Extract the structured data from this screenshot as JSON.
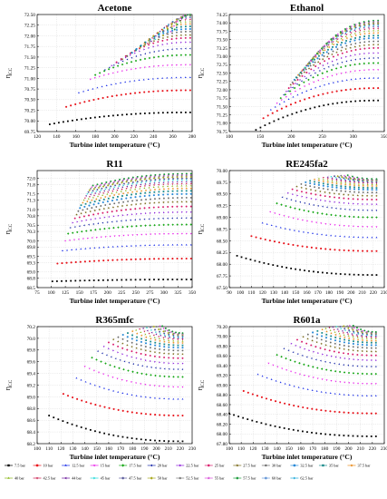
{
  "chart_data": [
    {
      "type": "scatter",
      "title": "Acetone",
      "xlabel": "Turbine inlet temperature (°C)",
      "ylabel_main": "η",
      "ylabel_sub": "CC",
      "xlim": [
        120,
        280
      ],
      "ylim": [
        69.75,
        72.5
      ],
      "xticks": [
        "120",
        "140",
        "160",
        "180",
        "200",
        "220",
        "240",
        "260",
        "280"
      ],
      "yticks": [
        "69.75",
        "70.00",
        "70.25",
        "70.50",
        "70.75",
        "71.00",
        "71.25",
        "71.50",
        "71.75",
        "72.00",
        "72.25",
        "72.50"
      ],
      "curves": {
        "tmax": 278,
        "rows": [
          [
            133,
            69.92,
            70.2
          ],
          [
            150,
            70.33,
            70.72
          ],
          [
            163,
            70.66,
            71.02
          ],
          [
            175,
            70.98,
            71.32
          ],
          [
            180,
            71.08,
            71.55
          ],
          [
            190,
            71.2,
            71.7
          ],
          [
            197,
            71.3,
            71.85
          ],
          [
            202,
            71.38,
            71.95
          ],
          [
            208,
            71.45,
            72.02
          ],
          [
            213,
            71.52,
            72.1
          ],
          [
            218,
            71.6,
            72.16
          ],
          [
            222,
            71.66,
            72.22
          ],
          [
            226,
            71.72,
            72.28
          ],
          [
            230,
            71.77,
            72.33
          ],
          [
            234,
            71.82,
            72.38
          ],
          [
            238,
            71.87,
            72.42
          ],
          [
            242,
            71.92,
            72.45
          ],
          [
            246,
            71.97,
            72.47
          ],
          [
            250,
            72.01,
            72.48
          ],
          [
            254,
            72.05,
            72.49
          ],
          [
            258,
            72.1,
            72.5
          ],
          [
            262,
            72.15,
            72.5
          ]
        ]
      }
    },
    {
      "type": "scatter",
      "title": "Ethanol",
      "xlabel": "Turbine inlet temperature (°C)",
      "ylabel_main": "η",
      "ylabel_sub": "CC",
      "xlim": [
        100,
        350
      ],
      "ylim": [
        70.75,
        74.25
      ],
      "xticks": [
        "100",
        "150",
        "200",
        "250",
        "300",
        "350"
      ],
      "yticks": [
        "70.75",
        "71.00",
        "71.25",
        "71.50",
        "71.75",
        "72.00",
        "72.25",
        "72.50",
        "72.75",
        "73.00",
        "73.25",
        "73.50",
        "73.75",
        "74.00",
        "74.25"
      ],
      "curves": {
        "tmax": 340,
        "rows": [
          [
            143,
            70.8,
            71.68
          ],
          [
            155,
            71.15,
            72.05
          ],
          [
            167,
            71.4,
            72.35
          ],
          [
            177,
            71.6,
            72.6
          ],
          [
            183,
            71.75,
            72.8
          ],
          [
            188,
            71.85,
            72.95
          ],
          [
            192,
            71.95,
            73.1
          ],
          [
            196,
            72.05,
            73.25
          ],
          [
            199,
            72.15,
            73.35
          ],
          [
            202,
            72.22,
            73.45
          ],
          [
            205,
            72.3,
            73.55
          ],
          [
            208,
            72.37,
            73.62
          ],
          [
            211,
            72.44,
            73.7
          ],
          [
            214,
            72.5,
            73.77
          ],
          [
            217,
            72.56,
            73.83
          ],
          [
            220,
            72.62,
            73.88
          ],
          [
            222,
            72.67,
            73.92
          ],
          [
            225,
            72.72,
            73.96
          ],
          [
            227,
            72.77,
            73.99
          ],
          [
            229,
            72.82,
            74.02
          ],
          [
            232,
            72.86,
            74.05
          ],
          [
            234,
            72.9,
            74.07
          ]
        ]
      }
    },
    {
      "type": "scatter",
      "title": "R11",
      "xlabel": "Turbine inlet temperature (°C)",
      "ylabel_main": "η",
      "ylabel_sub": "CC",
      "xlim": [
        75,
        350
      ],
      "ylim": [
        68.5,
        72.25
      ],
      "xticks": [
        "75",
        "100",
        "125",
        "150",
        "175",
        "200",
        "225",
        "250",
        "275",
        "300",
        "325",
        "350"
      ],
      "yticks": [
        "68.5",
        "68.8",
        "69.0",
        "69.3",
        "69.5",
        "69.8",
        "70.0",
        "70.3",
        "70.5",
        "70.8",
        "71.0",
        "71.3",
        "71.5",
        "71.8",
        "72.0"
      ],
      "curves": {
        "tmax": 348,
        "rows": [
          [
            102,
            68.7,
            68.76
          ],
          [
            111,
            69.27,
            69.43
          ],
          [
            120,
            69.68,
            69.87
          ],
          [
            125,
            70.0,
            70.23
          ],
          [
            130,
            70.23,
            70.52
          ],
          [
            134,
            70.42,
            70.73
          ],
          [
            138,
            70.58,
            70.92
          ],
          [
            142,
            70.72,
            71.1
          ],
          [
            145,
            70.84,
            71.25
          ],
          [
            148,
            70.95,
            71.38
          ],
          [
            151,
            71.05,
            71.5
          ],
          [
            153,
            71.14,
            71.6
          ],
          [
            156,
            71.22,
            71.68
          ],
          [
            158,
            71.3,
            71.76
          ],
          [
            160,
            71.37,
            71.83
          ],
          [
            162,
            71.44,
            71.89
          ],
          [
            164,
            71.5,
            71.95
          ],
          [
            166,
            71.56,
            72.0
          ],
          [
            168,
            71.62,
            72.05
          ],
          [
            170,
            71.67,
            72.09
          ],
          [
            172,
            71.72,
            72.12
          ],
          [
            174,
            71.77,
            72.15
          ]
        ]
      }
    },
    {
      "type": "scatter",
      "title": "RE245fa2",
      "xlabel": "Turbine inlet temperature (°C)",
      "ylabel_main": "η",
      "ylabel_sub": "CC",
      "xlim": [
        90,
        230
      ],
      "ylim": [
        67.5,
        70.0
      ],
      "xticks": [
        "90",
        "100",
        "110",
        "120",
        "130",
        "140",
        "150",
        "160",
        "170",
        "180",
        "190",
        "200",
        "210",
        "220",
        "230"
      ],
      "yticks": [
        "67.50",
        "67.75",
        "68.00",
        "68.25",
        "68.50",
        "68.75",
        "69.00",
        "69.25",
        "69.50",
        "69.75",
        "70.00"
      ],
      "curves": {
        "tmax": 223,
        "rows": [
          [
            97,
            68.18,
            67.77
          ],
          [
            110,
            68.6,
            68.28
          ],
          [
            120,
            68.88,
            68.57
          ],
          [
            127,
            69.12,
            68.8
          ],
          [
            133,
            69.3,
            69.0
          ],
          [
            138,
            69.43,
            69.15
          ],
          [
            143,
            69.52,
            69.28
          ],
          [
            147,
            69.6,
            69.38
          ],
          [
            151,
            69.66,
            69.46
          ],
          [
            155,
            69.71,
            69.53
          ],
          [
            159,
            69.75,
            69.59
          ],
          [
            163,
            69.78,
            69.63
          ],
          [
            167,
            69.81,
            69.67
          ],
          [
            171,
            69.83,
            69.7
          ],
          [
            175,
            69.85,
            69.73
          ],
          [
            179,
            69.86,
            69.75
          ],
          [
            182,
            69.87,
            69.77
          ],
          [
            185,
            69.88,
            69.78
          ],
          [
            188,
            69.88,
            69.79
          ],
          [
            191,
            69.89,
            69.8
          ],
          [
            194,
            69.89,
            69.81
          ],
          [
            197,
            69.9,
            69.82
          ]
        ]
      }
    },
    {
      "type": "scatter",
      "title": "R365mfc",
      "xlabel": "Turbine inlet temperature (°C)",
      "ylabel_main": "η",
      "ylabel_sub": "CC",
      "xlim": [
        100,
        230
      ],
      "ylim": [
        68.2,
        70.2
      ],
      "xticks": [
        "100",
        "110",
        "120",
        "130",
        "140",
        "150",
        "160",
        "170",
        "180",
        "190",
        "200",
        "210",
        "220",
        "230"
      ],
      "yticks": [
        "68.2",
        "68.4",
        "68.6",
        "68.8",
        "69.0",
        "69.2",
        "69.4",
        "69.6",
        "69.8",
        "70.0",
        "70.2"
      ],
      "curves": {
        "tmax": 222,
        "rows": [
          [
            110,
            68.68,
            68.24
          ],
          [
            122,
            69.05,
            68.68
          ],
          [
            133,
            69.32,
            68.96
          ],
          [
            140,
            69.52,
            69.17
          ],
          [
            146,
            69.67,
            69.34
          ],
          [
            151,
            69.78,
            69.47
          ],
          [
            156,
            69.86,
            69.57
          ],
          [
            160,
            69.93,
            69.66
          ],
          [
            164,
            69.98,
            69.73
          ],
          [
            168,
            70.02,
            69.79
          ],
          [
            172,
            70.06,
            69.84
          ],
          [
            176,
            70.09,
            69.88
          ],
          [
            180,
            70.12,
            69.92
          ],
          [
            183,
            70.14,
            69.95
          ],
          [
            186,
            70.16,
            69.98
          ],
          [
            189,
            70.17,
            70.0
          ],
          [
            192,
            70.18,
            70.02
          ],
          [
            195,
            70.19,
            70.04
          ],
          [
            198,
            70.2,
            70.06
          ],
          [
            200,
            70.2,
            70.07
          ],
          [
            203,
            70.21,
            70.08
          ],
          [
            205,
            70.21,
            70.09
          ]
        ]
      }
    },
    {
      "type": "scatter",
      "title": "R601a",
      "xlabel": "Turbine inlet temperature (°C)",
      "ylabel_main": "η",
      "ylabel_sub": "CC",
      "xlim": [
        100,
        230
      ],
      "ylim": [
        67.8,
        70.2
      ],
      "xticks": [
        "100",
        "110",
        "120",
        "130",
        "140",
        "150",
        "160",
        "170",
        "180",
        "190",
        "200",
        "210",
        "220",
        "230"
      ],
      "yticks": [
        "67.80",
        "68.00",
        "68.20",
        "68.40",
        "68.60",
        "68.80",
        "69.00",
        "69.20",
        "69.40",
        "69.60",
        "69.80",
        "70.00",
        "70.20"
      ],
      "curves": {
        "tmax": 223,
        "rows": [
          [
            100,
            68.42,
            67.95
          ],
          [
            112,
            68.88,
            68.42
          ],
          [
            124,
            69.22,
            68.78
          ],
          [
            133,
            69.45,
            69.03
          ],
          [
            140,
            69.62,
            69.23
          ],
          [
            146,
            69.75,
            69.38
          ],
          [
            152,
            69.85,
            69.51
          ],
          [
            157,
            69.93,
            69.61
          ],
          [
            162,
            69.99,
            69.69
          ],
          [
            166,
            70.04,
            69.76
          ],
          [
            170,
            70.08,
            69.82
          ],
          [
            174,
            70.11,
            69.87
          ],
          [
            178,
            70.14,
            69.91
          ],
          [
            181,
            70.16,
            69.95
          ],
          [
            184,
            70.18,
            69.98
          ],
          [
            187,
            70.19,
            70.0
          ],
          [
            190,
            70.2,
            70.02
          ],
          [
            193,
            70.2,
            70.04
          ],
          [
            196,
            70.21,
            70.06
          ],
          [
            199,
            70.21,
            70.07
          ],
          [
            201,
            70.22,
            70.08
          ],
          [
            204,
            70.22,
            70.09
          ]
        ]
      }
    }
  ],
  "legend": [
    {
      "label": "7.5 bar",
      "color": "#000000",
      "marker": "square"
    },
    {
      "label": "10 bar",
      "color": "#e8121a",
      "marker": "circle"
    },
    {
      "label": "12.5 bar",
      "color": "#1a2ee8",
      "marker": "triangle"
    },
    {
      "label": "15 bar",
      "color": "#e81ae8",
      "marker": "triangle-down"
    },
    {
      "label": "17.5 bar",
      "color": "#14a614",
      "marker": "diamond"
    },
    {
      "label": "20 bar",
      "color": "#1a2aa8",
      "marker": "triangle-left"
    },
    {
      "label": "22.5 bar",
      "color": "#8a1ad8",
      "marker": "triangle-right"
    },
    {
      "label": "25 bar",
      "color": "#d81a6a",
      "marker": "hexagon"
    },
    {
      "label": "27.5 bar",
      "color": "#7a6a1a",
      "marker": "star"
    },
    {
      "label": "30 bar",
      "color": "#6a6a6a",
      "marker": "pentagon"
    },
    {
      "label": "32.5 bar",
      "color": "#2a8ad8",
      "marker": "circle"
    },
    {
      "label": "35 bar",
      "color": "#1a8a8a",
      "marker": "square"
    },
    {
      "label": "37.5 bar",
      "color": "#e88a1a",
      "marker": "star"
    },
    {
      "label": "40 bar",
      "color": "#8ab81a",
      "marker": "triangle"
    },
    {
      "label": "42.5 bar",
      "color": "#c81a4a",
      "marker": "triangle-down"
    },
    {
      "label": "44 bar",
      "color": "#6a1a9a",
      "marker": "triangle-left"
    },
    {
      "label": "45 bar",
      "color": "#1ad8d8",
      "marker": "triangle-right"
    },
    {
      "label": "47.5 bar",
      "color": "#5a5a9a",
      "marker": "hexagon"
    },
    {
      "label": "50 bar",
      "color": "#a8a81a",
      "marker": "diamond"
    },
    {
      "label": "52.5 bar",
      "color": "#7a7a7a",
      "marker": "pentagon"
    },
    {
      "label": "55 bar",
      "color": "#d84ad8",
      "marker": "star"
    },
    {
      "label": "57.5 bar",
      "color": "#1a9a3a",
      "marker": "hexagon"
    },
    {
      "label": "60 bar",
      "color": "#6a9ad8",
      "marker": "circle"
    },
    {
      "label": "62.5 bar",
      "color": "#1aa8d8",
      "marker": "triangle-right"
    }
  ]
}
